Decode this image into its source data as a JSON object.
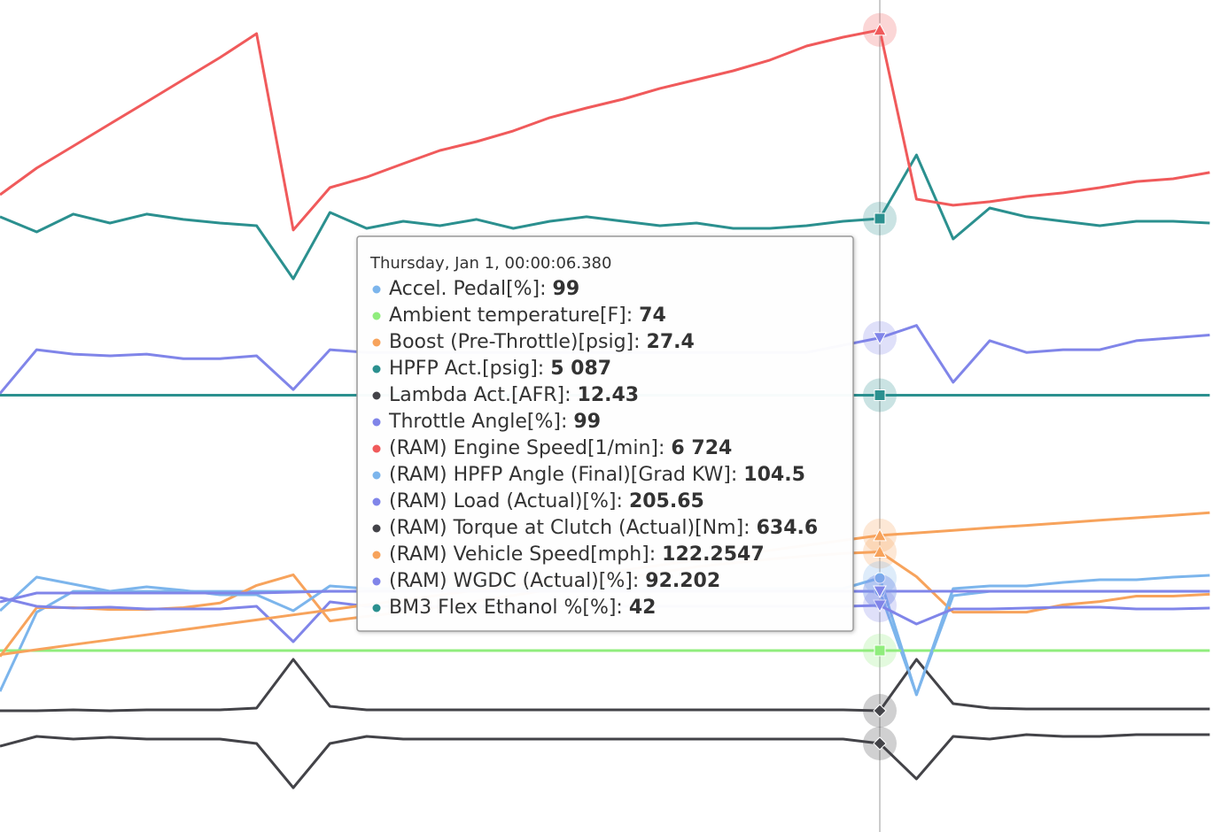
{
  "chart_data": {
    "type": "line",
    "series": [
      {
        "color": "#7cb5ec",
        "marker": "circle",
        "ylim": [
          -120,
          637
        ],
        "values": [
          8,
          80,
          99,
          99,
          99,
          99,
          99,
          99,
          99,
          99,
          99,
          99,
          99,
          99,
          99,
          99,
          99,
          99,
          99,
          99,
          99,
          99,
          99,
          99,
          99,
          5,
          95,
          99,
          99,
          99,
          99,
          99,
          99,
          99
        ]
      },
      {
        "color": "#90ed7d",
        "marker": "square",
        "ylim": [
          -131,
          809
        ],
        "values": [
          74,
          74,
          74,
          74,
          74,
          74,
          74,
          74,
          74,
          74,
          74,
          74,
          74,
          74,
          74,
          74,
          74,
          74,
          74,
          74,
          74,
          74,
          74,
          74,
          74,
          74,
          74,
          74,
          74,
          74,
          74,
          74,
          74,
          74
        ]
      },
      {
        "color": "#f7a35c",
        "marker": "triangle",
        "ylim": [
          -46,
          172
        ],
        "values": [
          0,
          12.8,
          12.8,
          12.3,
          12.3,
          12.8,
          14,
          18.6,
          21.4,
          9.3,
          10.5,
          11.6,
          13,
          14.5,
          16,
          17.5,
          19,
          20.5,
          22,
          23.5,
          24.5,
          25.5,
          26.3,
          27,
          27.4,
          20.9,
          11.6,
          11.6,
          11.6,
          13.5,
          14.4,
          15.8,
          15.8,
          16.3
        ]
      },
      {
        "color": "#2b908f",
        "marker": "square",
        "ylim": [
          0,
          6900
        ],
        "values": [
          5102,
          4977,
          5124,
          5050,
          5124,
          5080,
          5050,
          5028,
          4588,
          5138,
          5006,
          5065,
          5028,
          5080,
          5006,
          5065,
          5102,
          5065,
          5028,
          5050,
          5006,
          5006,
          5028,
          5065,
          5087,
          5615,
          4918,
          5175,
          5102,
          5065,
          5028,
          5065,
          5065,
          5050
        ]
      },
      {
        "color": "#434348",
        "marker": "diamond",
        "ylim": [
          -1.27,
          92.73
        ],
        "values": [
          12.43,
          12.43,
          12.53,
          12.43,
          12.53,
          12.53,
          12.53,
          12.73,
          18.23,
          12.93,
          12.53,
          12.53,
          12.53,
          12.53,
          12.53,
          12.53,
          12.53,
          12.53,
          12.53,
          12.53,
          12.53,
          12.53,
          12.53,
          12.53,
          12.43,
          18.23,
          13.23,
          12.73,
          12.63,
          12.63,
          12.63,
          12.63,
          12.63,
          12.63
        ]
      },
      {
        "color": "#8085e9",
        "marker": "triangle-down",
        "ylim": [
          -780,
          700
        ],
        "values": [
          0,
          78,
          70,
          67,
          70,
          62,
          62,
          67,
          7,
          78,
          73,
          73,
          73,
          73,
          73,
          73,
          73,
          73,
          73,
          73,
          73,
          73,
          73,
          86,
          99,
          121,
          20,
          94,
          73,
          78,
          78,
          94,
          99,
          104
        ]
      },
      {
        "color": "#f05a5b",
        "marker": "triangle",
        "ylim": [
          2000,
          6900
        ],
        "values": [
          5753,
          5910,
          6040,
          6170,
          6300,
          6431,
          6561,
          6702,
          5545,
          5795,
          5857,
          5936,
          6014,
          6066,
          6129,
          6207,
          6264,
          6316,
          6379,
          6431,
          6483,
          6546,
          6629,
          6681,
          6724,
          5727,
          5691,
          5712,
          5743,
          5764,
          5795,
          5831,
          5847,
          5884
        ]
      },
      {
        "color": "#7cb5ec",
        "marker": "circle",
        "ylim": [
          -39,
          431
        ],
        "values": [
          86,
          105,
          101,
          97,
          99.5,
          97.5,
          95,
          95,
          86,
          100,
          98.5,
          98.5,
          98.5,
          98.5,
          98.5,
          98.5,
          98.5,
          98.5,
          98.5,
          98.5,
          98.5,
          98.5,
          98.5,
          98.5,
          104.5,
          38.5,
          98.5,
          100,
          100,
          102,
          103.5,
          103.5,
          105,
          106
        ]
      },
      {
        "color": "#8085e9",
        "marker": "triangle-down",
        "ylim": [
          -306.35,
          1573.65
        ],
        "values": [
          223.65,
          203.65,
          199.65,
          201.65,
          197.65,
          197.65,
          197.65,
          203.65,
          123.65,
          213.65,
          203.65,
          203.65,
          203.65,
          203.65,
          203.65,
          203.65,
          203.65,
          203.65,
          203.65,
          203.65,
          203.65,
          203.65,
          203.65,
          203.65,
          205.65,
          163.65,
          197.65,
          197.65,
          199.65,
          201.65,
          201.65,
          197.65,
          197.65,
          199.65
        ]
      },
      {
        "color": "#434348",
        "marker": "diamond",
        "ylim": [
          134.6,
          4834.6
        ],
        "values": [
          619.6,
          674.6,
          659.6,
          669.6,
          659.6,
          659.6,
          659.6,
          634.6,
          384.6,
          634.6,
          674.6,
          659.6,
          659.6,
          659.6,
          659.6,
          659.6,
          659.6,
          659.6,
          659.6,
          659.6,
          659.6,
          659.6,
          659.6,
          659.6,
          634.6,
          434.6,
          674.6,
          659.6,
          684.6,
          674.6,
          674.6,
          684.6,
          684.6,
          684.6
        ]
      },
      {
        "color": "#f7a35c",
        "marker": "triangle",
        "ylim": [
          -157,
          626.33
        ],
        "values": [
          10,
          14.7,
          19.4,
          24,
          28.7,
          33.4,
          38.1,
          42.7,
          47.4,
          52.1,
          56.8,
          61.4,
          66.1,
          70.8,
          75.5,
          80.2,
          84.8,
          89.5,
          94.2,
          98.9,
          103.5,
          108.2,
          112.9,
          117.6,
          122.2547,
          124.6,
          127,
          129.4,
          131.7,
          134.1,
          136.5,
          138.8,
          141.2,
          143.6
        ]
      },
      {
        "color": "#8085e9",
        "marker": "triangle-down",
        "ylim": [
          -179.8,
          760.2
        ],
        "values": [
          80.2,
          90.2,
          90.2,
          90.2,
          90.2,
          90.2,
          90.2,
          90.2,
          91.2,
          92.2,
          92.2,
          92.2,
          92.2,
          92.2,
          92.2,
          92.2,
          92.2,
          92.2,
          92.2,
          92.2,
          92.2,
          92.2,
          92.2,
          92.2,
          92.202,
          92.2,
          92.2,
          92.2,
          92.2,
          92.2,
          92.2,
          92.2,
          92.2,
          92.2
        ]
      },
      {
        "color": "#2b908f",
        "marker": "square",
        "ylim": [
          0,
          80
        ],
        "values": [
          42,
          42,
          42,
          42,
          42,
          42,
          42,
          42,
          42,
          42,
          42,
          42,
          42,
          42,
          42,
          42,
          42,
          42,
          42,
          42,
          42,
          42,
          42,
          42,
          42,
          42,
          42,
          42,
          42,
          42,
          42,
          42,
          42,
          42
        ]
      }
    ],
    "tooltip": {
      "title": "Thursday, Jan 1, 00:00:06.380",
      "items": [
        {
          "label": "Accel. Pedal[%]:",
          "value": "99"
        },
        {
          "label": "Ambient temperature[F]:",
          "value": "74"
        },
        {
          "label": "Boost (Pre-Throttle)[psig]:",
          "value": "27.4"
        },
        {
          "label": "HPFP Act.[psig]:",
          "value": "5 087"
        },
        {
          "label": "Lambda Act.[AFR]:",
          "value": "12.43"
        },
        {
          "label": "Throttle Angle[%]:",
          "value": "99"
        },
        {
          "label": "(RAM) Engine Speed[1/min]:",
          "value": "6 724"
        },
        {
          "label": "(RAM) HPFP Angle (Final)[Grad KW]:",
          "value": "104.5"
        },
        {
          "label": "(RAM) Load (Actual)[%]:",
          "value": "205.65"
        },
        {
          "label": "(RAM) Torque at Clutch (Actual)[Nm]:",
          "value": "634.6"
        },
        {
          "label": "(RAM) Vehicle Speed[mph]:",
          "value": "122.2547"
        },
        {
          "label": "(RAM) WGDC (Actual)[%]:",
          "value": "92.202"
        },
        {
          "label": "BM3 Flex Ethanol %[%]:",
          "value": "42"
        }
      ]
    }
  }
}
